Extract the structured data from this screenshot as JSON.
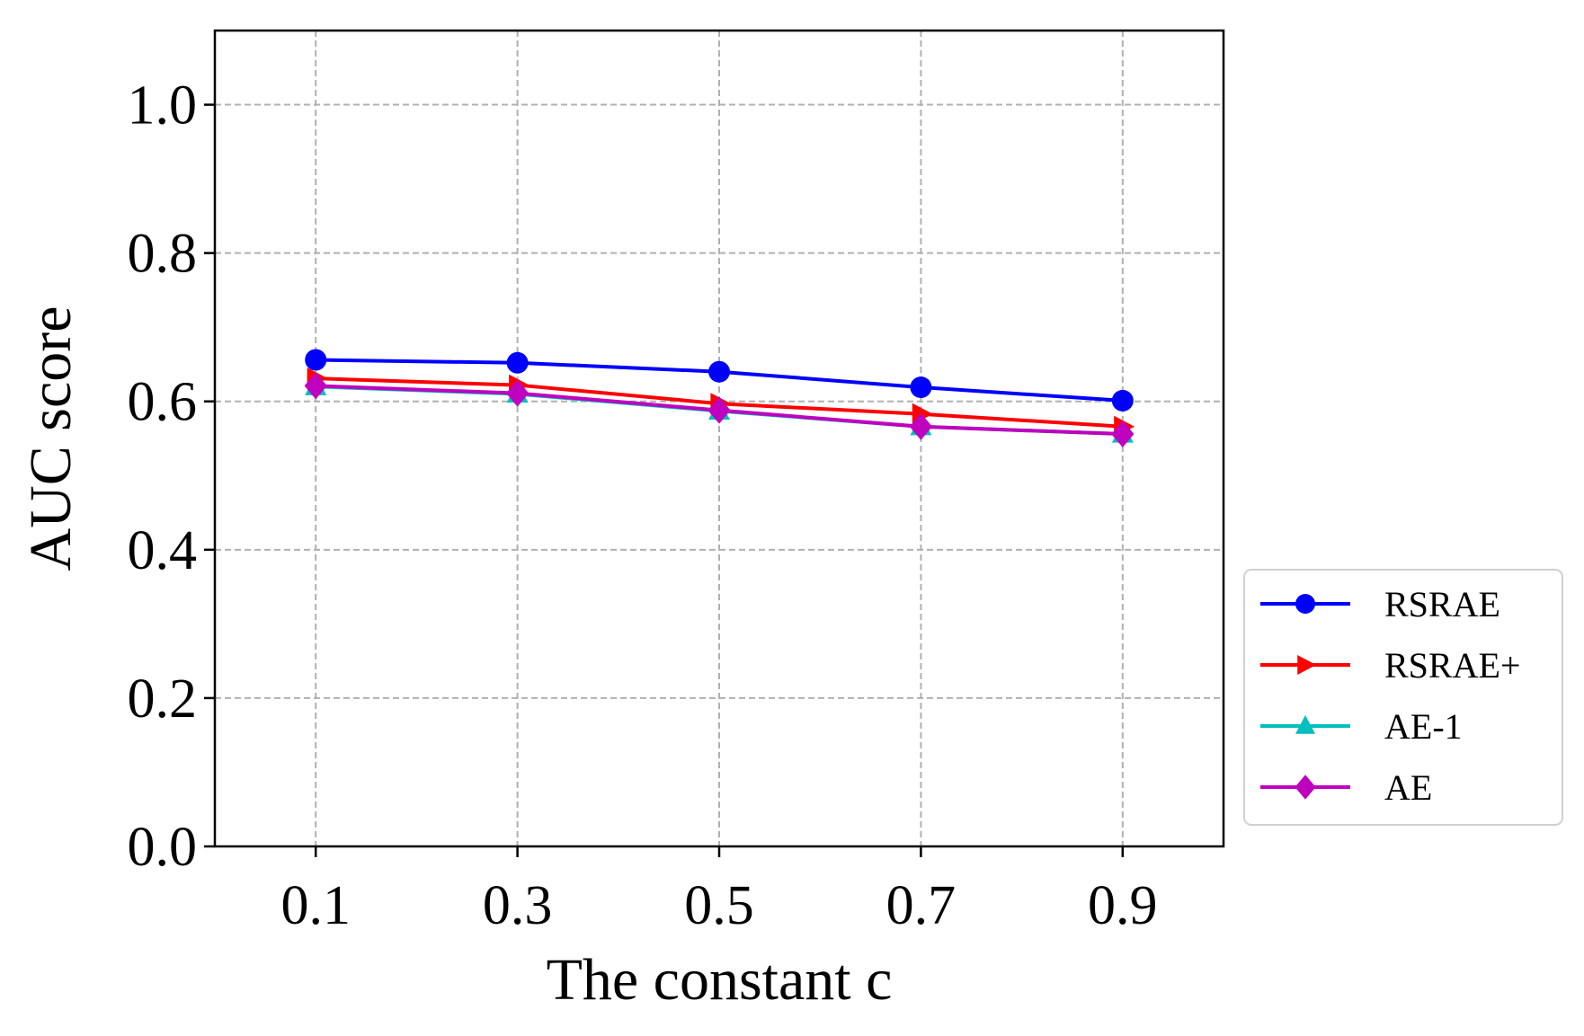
{
  "chart_data": {
    "type": "line",
    "title": "",
    "xlabel": "The constant c",
    "ylabel": "AUC score",
    "x": [
      0.1,
      0.3,
      0.5,
      0.7,
      0.9
    ],
    "x_tick_labels": [
      "0.1",
      "0.3",
      "0.5",
      "0.7",
      "0.9"
    ],
    "y_ticks": [
      0.0,
      0.2,
      0.4,
      0.6,
      0.8,
      1.0
    ],
    "y_tick_labels": [
      "0.0",
      "0.2",
      "0.4",
      "0.6",
      "0.8",
      "1.0"
    ],
    "xlim": [
      0.0,
      1.0
    ],
    "ylim": [
      0.0,
      1.1
    ],
    "grid": true,
    "legend_position": "outside-right-bottom",
    "series": [
      {
        "name": "RSRAE",
        "color": "#0000ff",
        "marker": "circle",
        "values": [
          0.656,
          0.652,
          0.64,
          0.619,
          0.601
        ]
      },
      {
        "name": "RSRAE+",
        "color": "#ff0000",
        "marker": "triangle-right",
        "values": [
          0.631,
          0.622,
          0.597,
          0.583,
          0.566
        ]
      },
      {
        "name": "AE-1",
        "color": "#00bfbf",
        "marker": "triangle-up",
        "values": [
          0.62,
          0.61,
          0.587,
          0.566,
          0.556
        ]
      },
      {
        "name": "AE",
        "color": "#bf00bf",
        "marker": "diamond",
        "values": [
          0.621,
          0.611,
          0.588,
          0.566,
          0.556
        ]
      }
    ]
  }
}
